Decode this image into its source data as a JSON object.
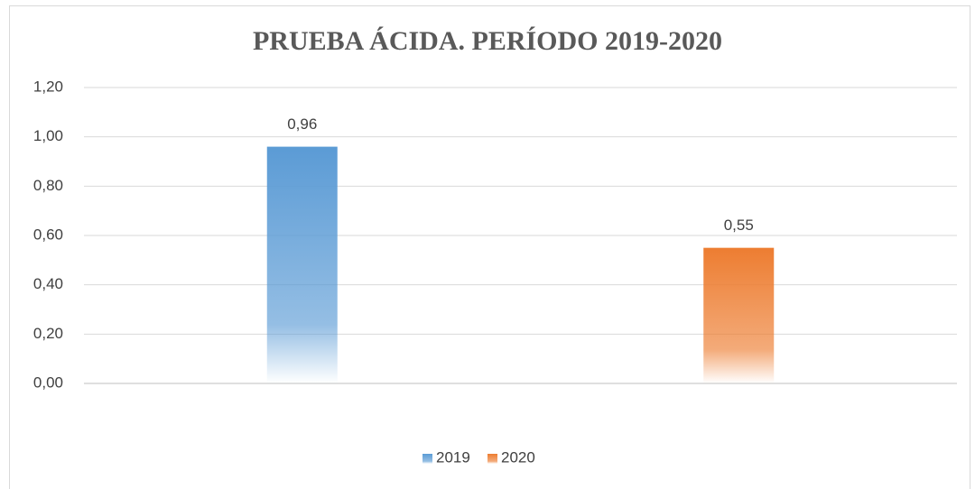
{
  "chart_data": {
    "type": "bar",
    "title": "PRUEBA ÁCIDA. PERÍODO 2019-2020",
    "categories": [
      null
    ],
    "series": [
      {
        "name": "2019",
        "color": "#5b9bd5",
        "values": [
          0.96
        ],
        "value_labels": [
          "0,96"
        ]
      },
      {
        "name": "2020",
        "color": "#ed7d31",
        "values": [
          0.55
        ],
        "value_labels": [
          "0,55"
        ]
      }
    ],
    "ylim": [
      0,
      1.2
    ],
    "yticks": [
      {
        "value": 0,
        "label": "0,00"
      },
      {
        "value": 0.2,
        "label": "0,20"
      },
      {
        "value": 0.4,
        "label": "0,40"
      },
      {
        "value": 0.6,
        "label": "0,60"
      },
      {
        "value": 0.8,
        "label": "0,80"
      },
      {
        "value": 1.0,
        "label": "1,00"
      },
      {
        "value": 1.2,
        "label": "1,20"
      }
    ],
    "grid": true,
    "legend": "bottom"
  }
}
